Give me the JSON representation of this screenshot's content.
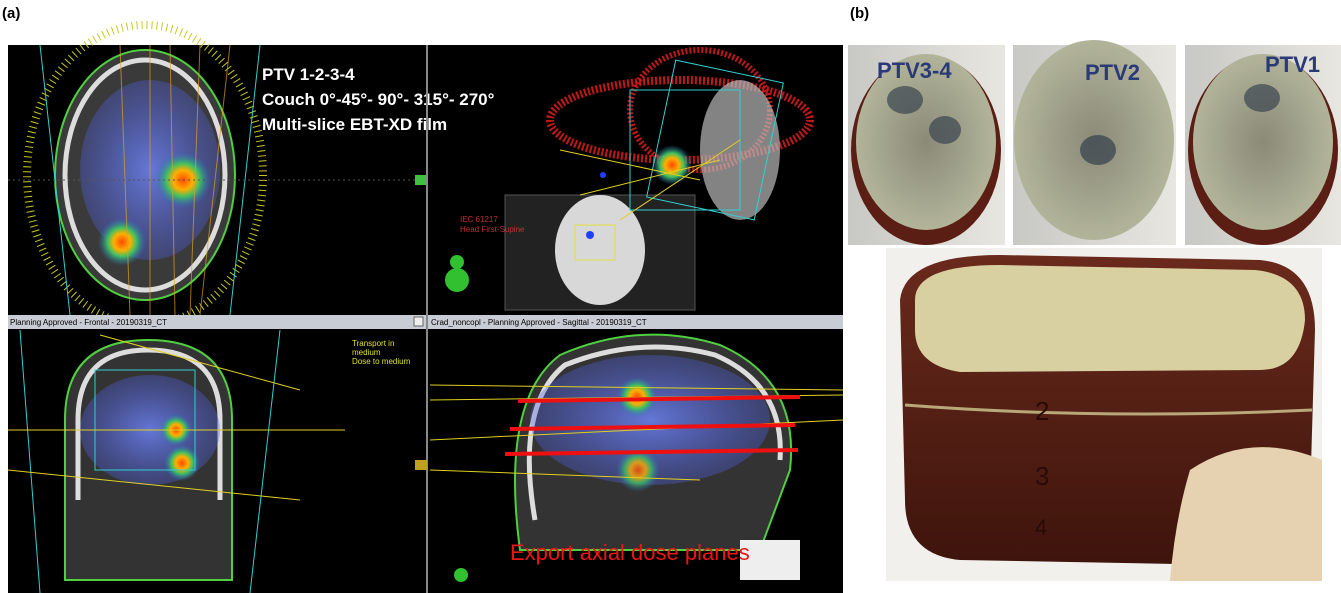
{
  "labels": {
    "a": "(a)",
    "b": "(b)"
  },
  "panel_a": {
    "overlay": [
      "PTV 1-2-3-4",
      "Couch 0°-45°- 90°- 315°- 270°",
      "Multi-slice EBT-XD film"
    ],
    "orientation": [
      "IEC 61217",
      "Head First-Supine"
    ],
    "frontal_header": "Planning Approved - Frontal - 20190319_CT",
    "sagittal_header": "Crad_noncopl - Planning Approved - Sagittal - 20190319_CT",
    "dose_note": [
      "Transport in",
      "medium",
      "Dose to medium"
    ],
    "export": "Export axial dose planes"
  },
  "panel_b": {
    "photos": [
      "PTV3-4",
      "PTV2",
      "PTV1"
    ],
    "levels": [
      "2",
      "3",
      "4"
    ]
  }
}
